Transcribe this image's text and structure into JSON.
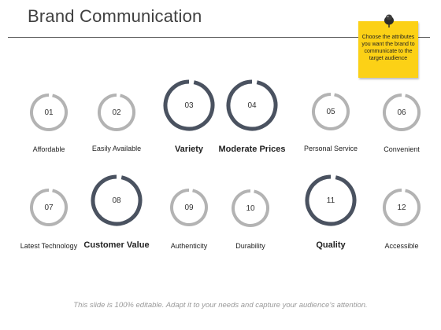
{
  "slide": {
    "title": "Brand Communication",
    "note": "Choose the attributes you want the brand to communicate to the target audience",
    "footer": "This slide is 100% editable. Adapt it to your needs and capture your audience’s attention."
  },
  "colors": {
    "ring_gray": "#b3b3b3",
    "ring_dark": "#4a5260",
    "note_yellow": "#fcd116"
  },
  "attributes": [
    {
      "number": "01",
      "label": "Affordable",
      "emphasized": false
    },
    {
      "number": "02",
      "label": "Easily Available",
      "emphasized": false
    },
    {
      "number": "03",
      "label": "Variety",
      "emphasized": true
    },
    {
      "number": "04",
      "label": "Moderate Prices",
      "emphasized": true
    },
    {
      "number": "05",
      "label": "Personal Service",
      "emphasized": false
    },
    {
      "number": "06",
      "label": "Convenient",
      "emphasized": false
    },
    {
      "number": "07",
      "label": "Latest Technology",
      "emphasized": false
    },
    {
      "number": "08",
      "label": "Customer Value",
      "emphasized": true
    },
    {
      "number": "09",
      "label": "Authenticity",
      "emphasized": false
    },
    {
      "number": "10",
      "label": "Durability",
      "emphasized": false
    },
    {
      "number": "11",
      "label": "Quality",
      "emphasized": true
    },
    {
      "number": "12",
      "label": "Accessible",
      "emphasized": false
    }
  ]
}
